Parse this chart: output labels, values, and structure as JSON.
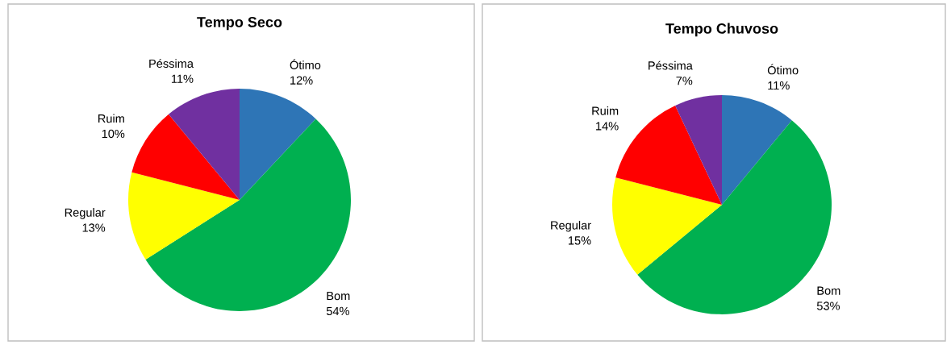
{
  "chart_data": [
    {
      "type": "pie",
      "title": "Tempo Seco",
      "categories": [
        "Ótimo",
        "Bom",
        "Regular",
        "Ruim",
        "Péssima"
      ],
      "values": [
        12,
        54,
        13,
        10,
        11
      ],
      "value_labels": [
        "12%",
        "54%",
        "13%",
        "10%",
        "11%"
      ],
      "colors": [
        "#2e75b6",
        "#00b050",
        "#ffff00",
        "#ff0000",
        "#7030a0"
      ],
      "legend": false
    },
    {
      "type": "pie",
      "title": "Tempo Chuvoso",
      "categories": [
        "Ótimo",
        "Bom",
        "Regular",
        "Ruim",
        "Péssima"
      ],
      "values": [
        11,
        53,
        15,
        14,
        7
      ],
      "value_labels": [
        "11%",
        "53%",
        "15%",
        "14%",
        "7%"
      ],
      "colors": [
        "#2e75b6",
        "#00b050",
        "#ffff00",
        "#ff0000",
        "#7030a0"
      ],
      "legend": false
    }
  ]
}
